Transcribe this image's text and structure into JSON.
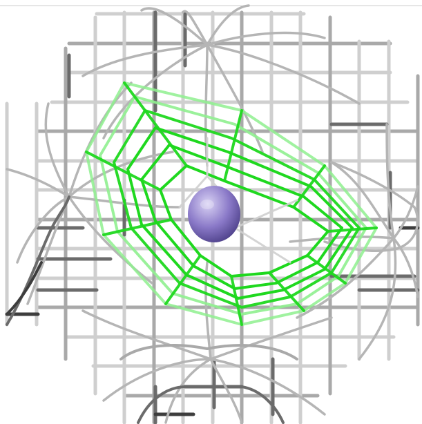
{
  "scene": {
    "background": "#ffffff",
    "box_grid": {
      "light": "#cfcfcf",
      "mid": "#a9a9a9",
      "dark": "#6b6b6b",
      "darkest": "#3d3d3d"
    },
    "surface_mesh": "#b5b5b5",
    "density_cage": {
      "bright": "#1fd81f",
      "pale": "#8ff08f"
    },
    "atom": {
      "fill": "#8a79c8",
      "highlight": "#d9d2f4",
      "shadow": "#4a3d86"
    }
  }
}
